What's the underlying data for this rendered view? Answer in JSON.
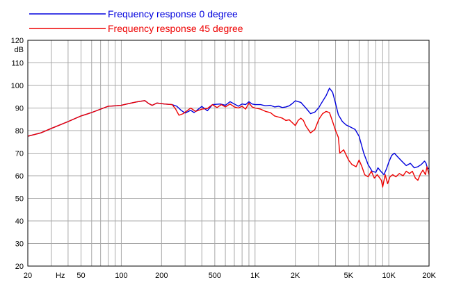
{
  "chart_data": {
    "type": "line",
    "title": "",
    "xlabel": "",
    "ylabel": "",
    "x_scale": "log",
    "xlim": [
      20,
      20000
    ],
    "ylim": [
      20,
      120
    ],
    "y_unit_label": "dB",
    "x_unit_label": "Hz",
    "grid": true,
    "legend_position": "top-left",
    "x_ticks": [
      {
        "value": 20,
        "label": "20"
      },
      {
        "value": 50,
        "label": "50"
      },
      {
        "value": 100,
        "label": "100"
      },
      {
        "value": 200,
        "label": "200"
      },
      {
        "value": 500,
        "label": "500"
      },
      {
        "value": 1000,
        "label": "1K"
      },
      {
        "value": 2000,
        "label": "2K"
      },
      {
        "value": 5000,
        "label": "5K"
      },
      {
        "value": 10000,
        "label": "10K"
      },
      {
        "value": 20000,
        "label": "20K"
      }
    ],
    "y_ticks": [
      20,
      30,
      40,
      50,
      60,
      70,
      80,
      90,
      100,
      110,
      120
    ],
    "series": [
      {
        "name": "Frequency response 0 degree",
        "color": "#0000dd",
        "points": [
          [
            20,
            77.5
          ],
          [
            25,
            79
          ],
          [
            30,
            81
          ],
          [
            40,
            84
          ],
          [
            50,
            86.5
          ],
          [
            60,
            88
          ],
          [
            70,
            89.5
          ],
          [
            80,
            90.8
          ],
          [
            90,
            91
          ],
          [
            100,
            91.2
          ],
          [
            110,
            91.8
          ],
          [
            130,
            92.7
          ],
          [
            150,
            93.3
          ],
          [
            160,
            92
          ],
          [
            170,
            91.2
          ],
          [
            185,
            92.2
          ],
          [
            210,
            91.8
          ],
          [
            240,
            91.5
          ],
          [
            260,
            90.8
          ],
          [
            280,
            89
          ],
          [
            300,
            87.8
          ],
          [
            330,
            89
          ],
          [
            350,
            88
          ],
          [
            400,
            90.7
          ],
          [
            440,
            88.8
          ],
          [
            480,
            91.5
          ],
          [
            550,
            91.8
          ],
          [
            600,
            91.2
          ],
          [
            650,
            92.8
          ],
          [
            700,
            91.8
          ],
          [
            750,
            90.8
          ],
          [
            800,
            91.8
          ],
          [
            850,
            91.5
          ],
          [
            900,
            92.8
          ],
          [
            950,
            91.8
          ],
          [
            1000,
            91.5
          ],
          [
            1100,
            91.5
          ],
          [
            1200,
            91
          ],
          [
            1300,
            91.2
          ],
          [
            1400,
            90.5
          ],
          [
            1500,
            90.8
          ],
          [
            1600,
            90.2
          ],
          [
            1700,
            90.5
          ],
          [
            1800,
            91
          ],
          [
            1900,
            92
          ],
          [
            2000,
            93.2
          ],
          [
            2200,
            92.5
          ],
          [
            2400,
            90
          ],
          [
            2600,
            87.5
          ],
          [
            2800,
            88.2
          ],
          [
            3000,
            90.2
          ],
          [
            3200,
            93
          ],
          [
            3400,
            95.5
          ],
          [
            3600,
            98.8
          ],
          [
            3800,
            97
          ],
          [
            4000,
            92
          ],
          [
            4200,
            87
          ],
          [
            4500,
            84
          ],
          [
            4800,
            82.5
          ],
          [
            5200,
            81.5
          ],
          [
            5600,
            80.5
          ],
          [
            6000,
            77.5
          ],
          [
            6500,
            70
          ],
          [
            7000,
            65
          ],
          [
            7500,
            62
          ],
          [
            8000,
            61.5
          ],
          [
            8300,
            63.5
          ],
          [
            8700,
            62
          ],
          [
            9200,
            60.5
          ],
          [
            9600,
            63
          ],
          [
            10000,
            66
          ],
          [
            10500,
            69
          ],
          [
            11000,
            70
          ],
          [
            11600,
            68.5
          ],
          [
            12500,
            66.5
          ],
          [
            13500,
            64.5
          ],
          [
            14500,
            65.5
          ],
          [
            15500,
            63.5
          ],
          [
            16500,
            64
          ],
          [
            17500,
            65
          ],
          [
            18500,
            66.5
          ],
          [
            19000,
            65.5
          ],
          [
            19500,
            63
          ],
          [
            20000,
            63.5
          ]
        ]
      },
      {
        "name": "Frequency response 45 degree",
        "color": "#ee0000",
        "points": [
          [
            20,
            77.5
          ],
          [
            25,
            79
          ],
          [
            30,
            81
          ],
          [
            40,
            84
          ],
          [
            50,
            86.5
          ],
          [
            60,
            88
          ],
          [
            70,
            89.5
          ],
          [
            80,
            90.8
          ],
          [
            90,
            91
          ],
          [
            100,
            91.2
          ],
          [
            110,
            91.8
          ],
          [
            130,
            92.7
          ],
          [
            150,
            93.3
          ],
          [
            160,
            92
          ],
          [
            170,
            91.2
          ],
          [
            185,
            92.2
          ],
          [
            210,
            91.8
          ],
          [
            240,
            91.5
          ],
          [
            255,
            89.5
          ],
          [
            270,
            86.8
          ],
          [
            290,
            87.5
          ],
          [
            330,
            90
          ],
          [
            360,
            88.5
          ],
          [
            400,
            89.5
          ],
          [
            440,
            89.8
          ],
          [
            480,
            91.5
          ],
          [
            520,
            90.2
          ],
          [
            560,
            91.5
          ],
          [
            600,
            90.5
          ],
          [
            650,
            91.8
          ],
          [
            700,
            90.5
          ],
          [
            750,
            90
          ],
          [
            800,
            90.8
          ],
          [
            850,
            89.5
          ],
          [
            900,
            92.2
          ],
          [
            950,
            90.5
          ],
          [
            1000,
            90
          ],
          [
            1100,
            89.5
          ],
          [
            1200,
            88.5
          ],
          [
            1300,
            88
          ],
          [
            1400,
            86.5
          ],
          [
            1500,
            86
          ],
          [
            1600,
            85.5
          ],
          [
            1700,
            84.5
          ],
          [
            1800,
            84.8
          ],
          [
            1900,
            83.5
          ],
          [
            2000,
            82.2
          ],
          [
            2100,
            84.5
          ],
          [
            2200,
            85.5
          ],
          [
            2300,
            84.5
          ],
          [
            2400,
            82
          ],
          [
            2600,
            79
          ],
          [
            2800,
            80.5
          ],
          [
            3000,
            85
          ],
          [
            3200,
            87.5
          ],
          [
            3400,
            88.5
          ],
          [
            3600,
            88
          ],
          [
            3800,
            84
          ],
          [
            4000,
            80
          ],
          [
            4200,
            77
          ],
          [
            4300,
            70
          ],
          [
            4600,
            71.5
          ],
          [
            5000,
            67
          ],
          [
            5300,
            65
          ],
          [
            5700,
            64
          ],
          [
            6000,
            67
          ],
          [
            6300,
            64
          ],
          [
            6600,
            60.5
          ],
          [
            7000,
            59.5
          ],
          [
            7400,
            62
          ],
          [
            7800,
            59
          ],
          [
            8200,
            60.5
          ],
          [
            8800,
            58
          ],
          [
            9000,
            55
          ],
          [
            9400,
            60.5
          ],
          [
            9800,
            56.5
          ],
          [
            10200,
            59.5
          ],
          [
            10700,
            60.5
          ],
          [
            11300,
            59.5
          ],
          [
            12000,
            61
          ],
          [
            12800,
            60
          ],
          [
            13500,
            62
          ],
          [
            14300,
            61
          ],
          [
            15000,
            62
          ],
          [
            15800,
            59
          ],
          [
            16500,
            58
          ],
          [
            17300,
            61
          ],
          [
            18000,
            62.5
          ],
          [
            18800,
            60.5
          ],
          [
            19300,
            64
          ],
          [
            20000,
            60.5
          ]
        ]
      }
    ]
  }
}
